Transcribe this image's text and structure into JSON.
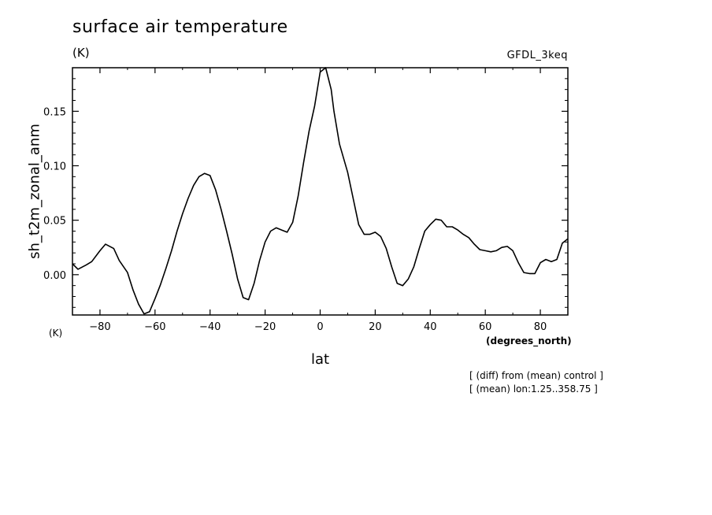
{
  "header": {
    "title": "surface air temperature",
    "units": "(K)",
    "model": "GFDL_3keq"
  },
  "footer": {
    "x_units_left": "(K)",
    "x_units_right": "(degrees_north)",
    "notes": [
      "[ (diff) from (mean) control ]",
      "[ (mean) lon:1.25..358.75 ]"
    ]
  },
  "chart_data": {
    "type": "line",
    "title": "surface air temperature",
    "xlabel": "lat",
    "ylabel": "sh_t2m_zonal_anm",
    "xlim": [
      -90,
      90
    ],
    "ylim": [
      -0.037,
      0.19
    ],
    "xticks": [
      -80,
      -60,
      -40,
      -20,
      0,
      20,
      40,
      60,
      80
    ],
    "xtick_labels": [
      "-80",
      "-60",
      "-40",
      "-20",
      "0",
      "20",
      "40",
      "60",
      "80"
    ],
    "yticks": [
      0.0,
      0.05,
      0.1,
      0.15
    ],
    "ytick_labels": [
      "0.00",
      "0.05",
      "0.10",
      "0.15"
    ],
    "grid": false,
    "series": [
      {
        "x": [
          -90,
          -88,
          -85,
          -83,
          -80,
          -78,
          -75,
          -73,
          -70,
          -68,
          -66,
          -64,
          -62,
          -60,
          -58,
          -56,
          -54,
          -52,
          -50,
          -48,
          -46,
          -44,
          -42,
          -40,
          -38,
          -36,
          -34,
          -32,
          -30,
          -28,
          -26,
          -24,
          -22,
          -20,
          -18,
          -16,
          -14,
          -12,
          -10,
          -8,
          -6,
          -4,
          -2,
          0,
          1,
          2,
          4,
          5,
          7,
          10,
          12,
          14,
          16,
          18,
          20,
          22,
          24,
          26,
          28,
          30,
          32,
          34,
          36,
          38,
          40,
          42,
          44,
          46,
          48,
          50,
          52,
          54,
          56,
          58,
          60,
          62,
          64,
          66,
          68,
          70,
          72,
          74,
          76,
          78,
          80,
          82,
          84,
          86,
          88,
          90
        ],
        "values": [
          0.01,
          0.005,
          0.009,
          0.012,
          0.022,
          0.028,
          0.024,
          0.013,
          0.002,
          -0.014,
          -0.027,
          -0.036,
          -0.034,
          -0.022,
          -0.009,
          0.006,
          0.022,
          0.04,
          0.056,
          0.07,
          0.082,
          0.09,
          0.093,
          0.091,
          0.078,
          0.06,
          0.04,
          0.019,
          -0.004,
          -0.021,
          -0.023,
          -0.008,
          0.013,
          0.03,
          0.04,
          0.043,
          0.041,
          0.039,
          0.048,
          0.072,
          0.103,
          0.132,
          0.155,
          0.186,
          0.188,
          0.19,
          0.17,
          0.15,
          0.12,
          0.094,
          0.07,
          0.046,
          0.037,
          0.037,
          0.039,
          0.035,
          0.024,
          0.007,
          -0.008,
          -0.01,
          -0.004,
          0.007,
          0.024,
          0.04,
          0.046,
          0.051,
          0.05,
          0.044,
          0.044,
          0.041,
          0.037,
          0.034,
          0.028,
          0.023,
          0.022,
          0.021,
          0.022,
          0.025,
          0.026,
          0.022,
          0.011,
          0.002,
          0.001,
          0.001,
          0.011,
          0.014,
          0.012,
          0.014,
          0.029,
          0.033
        ]
      }
    ]
  }
}
